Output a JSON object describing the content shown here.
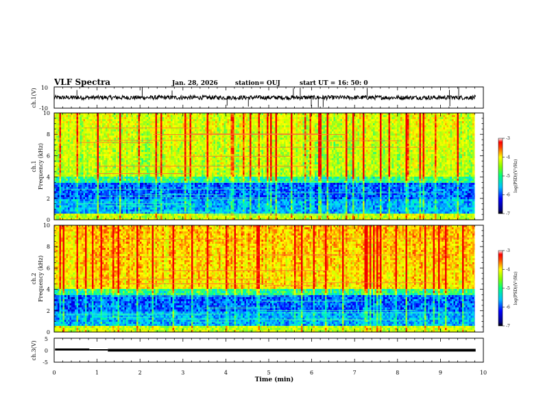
{
  "header": {
    "title": "VLF Spectra",
    "date": "Jan. 28, 2026",
    "station": "station= OUJ",
    "start": "start  UT =   16: 50: 0"
  },
  "chart_data": [
    {
      "type": "line",
      "id": "ch1-voltage",
      "ylabel": "ch.1(V)",
      "ylim": [
        -10,
        10
      ],
      "yticks": [
        "10",
        "-10"
      ],
      "xlim": [
        0,
        10
      ],
      "baseline": 0,
      "color": "#000000"
    },
    {
      "type": "heatmap",
      "id": "ch1-spectrogram",
      "ylabel": "ch.1\nFrequency (kHz)",
      "ylabel_lines": [
        "ch.1",
        "Frequency (kHz)"
      ],
      "ylim": [
        0,
        10
      ],
      "yticks": [
        "0",
        "2",
        "4",
        "6",
        "8",
        "10"
      ],
      "xlim": [
        0,
        9.8
      ],
      "colorbar": {
        "label": "log(PSD)(V²/Hz)",
        "range": [
          -7,
          -3
        ],
        "ticks": [
          "-7",
          "-6",
          "-5",
          "-4",
          "-3"
        ]
      }
    },
    {
      "type": "heatmap",
      "id": "ch2-spectrogram",
      "ylabel": "ch.2\nFrequency (kHz)",
      "ylabel_lines": [
        "ch.2",
        "Frequency (kHz)"
      ],
      "ylim": [
        0,
        10
      ],
      "yticks": [
        "0",
        "2",
        "4",
        "6",
        "8",
        "10"
      ],
      "xlim": [
        0,
        9.8
      ],
      "colorbar": {
        "label": "log(PSD)(V²/Hz)",
        "range": [
          -7,
          -3
        ],
        "ticks": [
          "-7",
          "-6",
          "-5",
          "-4",
          "-3"
        ]
      }
    },
    {
      "type": "line",
      "id": "ch3-voltage",
      "ylabel": "ch.3(V)",
      "ylim": [
        -5,
        5
      ],
      "yticks": [
        "5",
        "0",
        "-5"
      ],
      "xlim": [
        0,
        10
      ],
      "baseline": 0,
      "color": "#000000"
    }
  ],
  "xaxis": {
    "label": "Time (min)",
    "range": [
      0,
      10
    ],
    "ticks": [
      "0",
      "1",
      "2",
      "3",
      "4",
      "5",
      "6",
      "7",
      "8",
      "9",
      "10"
    ]
  }
}
